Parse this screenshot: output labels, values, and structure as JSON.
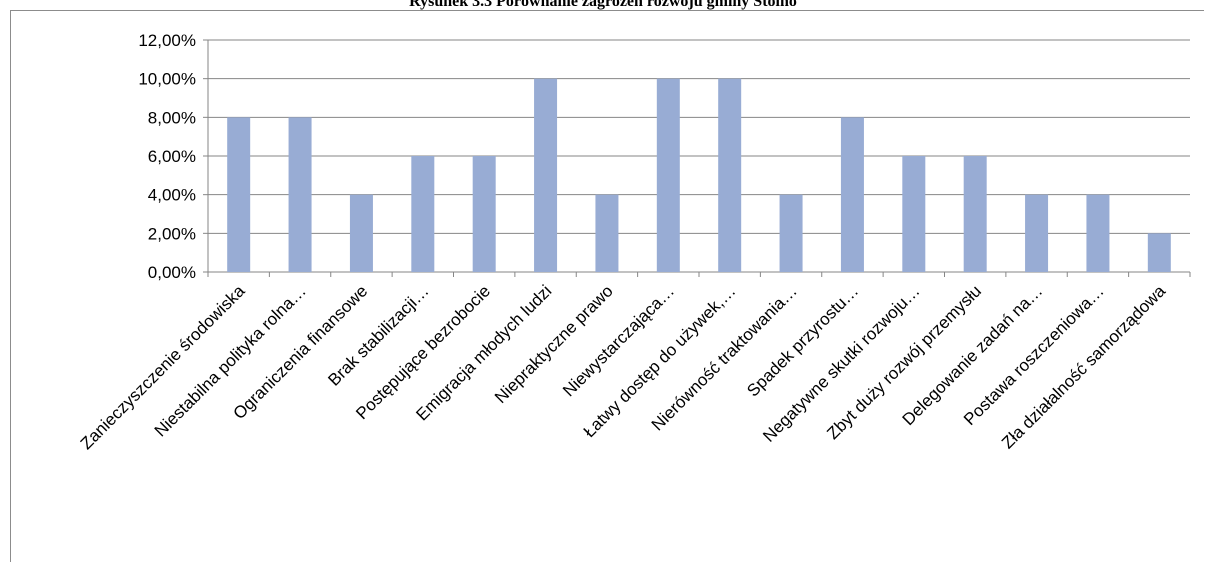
{
  "chart_data": {
    "type": "bar",
    "title": "Rysunek 3.3 Porównanie zagrożeń rozwoju gminy Stolno",
    "categories": [
      "Zanieczyszczenie środowiska",
      "Niestabilna polityka rolna…",
      "Ograniczenia finansowe",
      "Brak stabilizacji…",
      "Postępujące bezrobocie",
      "Emigracja młodych ludzi",
      "Niepraktyczne prawo",
      "Niewystarczająca…",
      "Łatwy dostęp do używek,…",
      "Nierówność traktowania…",
      "Spadek przyrostu…",
      "Negatywne skutki rozwoju…",
      "Zbyt duży rozwój przemysłu",
      "Delegowanie zadań na…",
      "Postawa roszczeniowa…",
      "Zła działalność samorządowa"
    ],
    "values": [
      8,
      8,
      4,
      6,
      6,
      10,
      4,
      10,
      10,
      4,
      8,
      6,
      6,
      4,
      4,
      2
    ],
    "yticks": [
      "0,00%",
      "2,00%",
      "4,00%",
      "6,00%",
      "8,00%",
      "10,00%",
      "12,00%"
    ],
    "ylim": [
      0,
      12
    ],
    "grid": true,
    "bar_color": "#98acd4",
    "grid_color": "#868686"
  }
}
